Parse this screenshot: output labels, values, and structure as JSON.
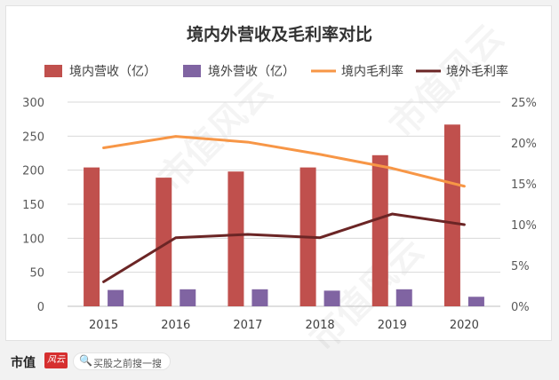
{
  "chart_data": {
    "type": "bar",
    "title": "境内外营收及毛利率对比",
    "categories": [
      "2015",
      "2016",
      "2017",
      "2018",
      "2019",
      "2020"
    ],
    "series": [
      {
        "name": "境内营收（亿）",
        "kind": "bar",
        "axis": "left",
        "color": "#c0504d",
        "values": [
          204,
          189,
          198,
          204,
          222,
          267
        ]
      },
      {
        "name": "境外营收（亿）",
        "kind": "bar",
        "axis": "left",
        "color": "#8064a2",
        "values": [
          24,
          25,
          25,
          23,
          25,
          14
        ]
      },
      {
        "name": "境内毛利率",
        "kind": "line",
        "axis": "right",
        "color": "#f79646",
        "values": [
          19.4,
          20.8,
          20.1,
          18.6,
          16.9,
          14.7
        ]
      },
      {
        "name": "境外毛利率",
        "kind": "line",
        "axis": "right",
        "color": "#6b2525",
        "values": [
          3.0,
          8.4,
          8.8,
          8.4,
          11.3,
          10.0
        ]
      }
    ],
    "ylim": [
      0,
      300
    ],
    "yticks": [
      0,
      50,
      100,
      150,
      200,
      250,
      300
    ],
    "y2lim": [
      0,
      25
    ],
    "y2ticks": [
      "0%",
      "5%",
      "10%",
      "15%",
      "20%",
      "25%"
    ],
    "legend": "top"
  },
  "footer": {
    "brand": "市值",
    "logo": "风云",
    "search_text": "买股之前搜一搜"
  },
  "watermark": "市值风云"
}
